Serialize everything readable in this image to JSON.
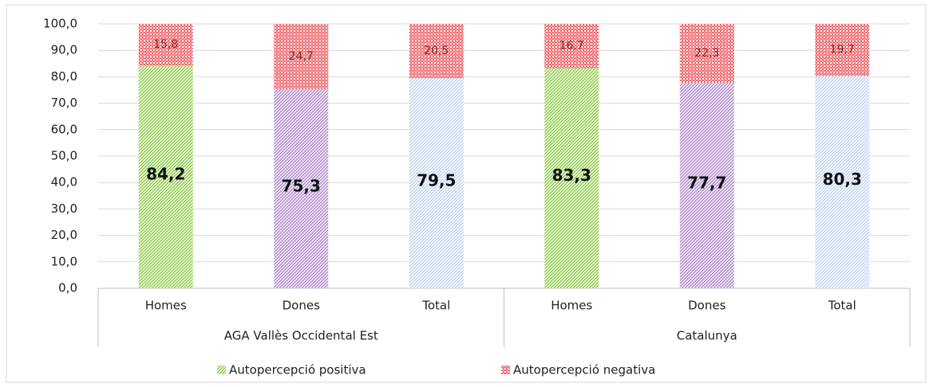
{
  "chart_data": {
    "type": "stacked_bar",
    "categories": [
      "Homes",
      "Dones",
      "Total",
      "Homes",
      "Dones",
      "Total"
    ],
    "groups": [
      {
        "name": "AGA Vallès Occidental Est",
        "size": 3
      },
      {
        "name": "Catalunya",
        "size": 3
      }
    ],
    "series": [
      {
        "name": "Autopercepció positiva",
        "color": "#92d050",
        "point_colors": [
          "#92d050",
          "#b38fd1",
          "#c5d9f1",
          "#92d050",
          "#b38fd1",
          "#c5d9f1"
        ],
        "values": [
          84.2,
          75.3,
          79.5,
          83.3,
          77.7,
          80.3
        ],
        "value_labels": [
          "84,2",
          "75,3",
          "79,5",
          "83,3",
          "77,7",
          "80,3"
        ]
      },
      {
        "name": "Autopercepció negativa",
        "color": "#f4646a",
        "values": [
          15.8,
          24.7,
          20.5,
          16.7,
          22.3,
          19.7
        ],
        "value_labels": [
          "15,8",
          "24,7",
          "20,5",
          "16,7",
          "22,3",
          "19,7"
        ]
      }
    ],
    "ylim": [
      0,
      100
    ],
    "yticks": [
      {
        "value": 0,
        "label": "0,0"
      },
      {
        "value": 10,
        "label": "10,0"
      },
      {
        "value": 20,
        "label": "20,0"
      },
      {
        "value": 30,
        "label": "30,0"
      },
      {
        "value": 40,
        "label": "40,0"
      },
      {
        "value": 50,
        "label": "50,0"
      },
      {
        "value": 60,
        "label": "60,0"
      },
      {
        "value": 70,
        "label": "70,0"
      },
      {
        "value": 80,
        "label": "80,0"
      },
      {
        "value": 90,
        "label": "90,0"
      },
      {
        "value": 100,
        "label": "100,0"
      }
    ],
    "grid": true,
    "legend": "bottom"
  }
}
